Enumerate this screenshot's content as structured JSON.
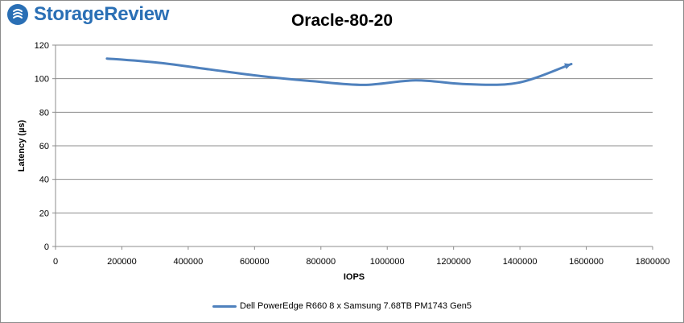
{
  "brand": {
    "name": "StorageReview",
    "color": "#2a6fb5"
  },
  "chart_data": {
    "type": "line",
    "title": "Oracle-80-20",
    "xlabel": "IOPS",
    "ylabel": "Latency (µs)",
    "xlim": [
      0,
      1800000
    ],
    "ylim": [
      0,
      120
    ],
    "xticks": [
      0,
      200000,
      400000,
      600000,
      800000,
      1000000,
      1200000,
      1400000,
      1600000,
      1800000
    ],
    "yticks": [
      0,
      20,
      40,
      60,
      80,
      100,
      120
    ],
    "grid": "horizontal",
    "legend_position": "bottom",
    "series": [
      {
        "name": "Dell PowerEdge R660 8 x Samsung 7.68TB PM1743 Gen5",
        "color": "#4f81bd",
        "x": [
          155000,
          310000,
          465000,
          620000,
          775000,
          930000,
          1085000,
          1240000,
          1395000,
          1555000
        ],
        "y": [
          112,
          109.5,
          105.5,
          101.5,
          98.5,
          96.3,
          99,
          96.7,
          97.6,
          108.7
        ]
      }
    ]
  }
}
